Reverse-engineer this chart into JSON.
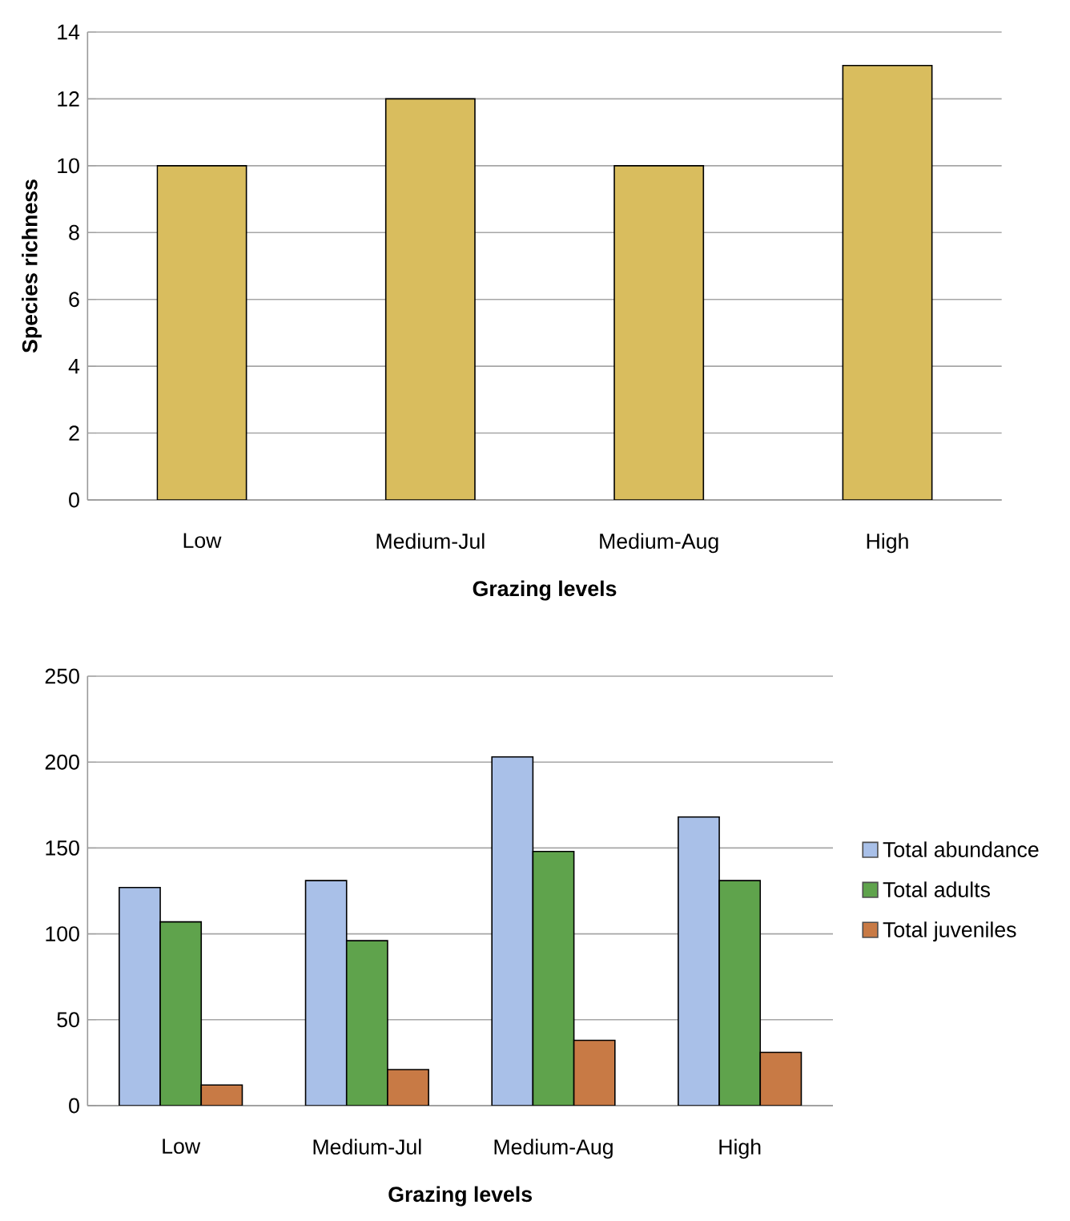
{
  "chart_data": [
    {
      "type": "bar",
      "xlabel": "Grazing levels",
      "ylabel": "Species richness",
      "categories": [
        "Low",
        "Medium-Jul",
        "Medium-Aug",
        "High"
      ],
      "values": [
        10,
        12,
        10,
        13
      ],
      "color": "#d9bd5e",
      "ylim": [
        0,
        14
      ],
      "yticks": [
        0,
        2,
        4,
        6,
        8,
        10,
        12,
        14
      ],
      "grid": "y"
    },
    {
      "type": "bar",
      "xlabel": "Grazing levels",
      "categories": [
        "Low",
        "Medium-Jul",
        "Medium-Aug",
        "High"
      ],
      "series": [
        {
          "name": "Total abundance",
          "color": "#a9c0e8",
          "values": [
            127,
            131,
            203,
            168
          ]
        },
        {
          "name": "Total adults",
          "color": "#5fa34c",
          "values": [
            107,
            96,
            148,
            131
          ]
        },
        {
          "name": "Total juveniles",
          "color": "#c87a45",
          "values": [
            12,
            21,
            38,
            31
          ]
        }
      ],
      "ylim": [
        0,
        250
      ],
      "yticks": [
        0,
        50,
        100,
        150,
        200,
        250
      ],
      "grid": "y",
      "legend": "right"
    }
  ]
}
